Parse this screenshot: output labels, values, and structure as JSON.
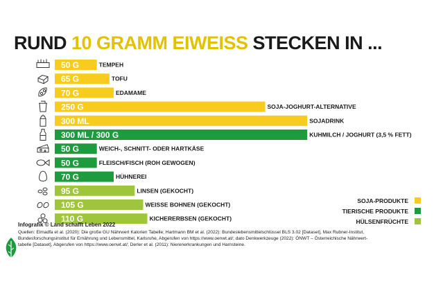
{
  "title": {
    "part1": "RUND ",
    "highlight": "10 GRAMM EIWEISS",
    "part2": " STECKEN IN ..."
  },
  "colors": {
    "soja": "#f7cc1e",
    "tierisch": "#1e9a3f",
    "huelsen": "#9fc53a"
  },
  "chart_data": {
    "type": "bar",
    "orientation": "horizontal",
    "categories": [
      "TEMPEH",
      "TOFU",
      "EDAMAME",
      "SOJA-JOGHURT-ALTERNATIVE",
      "SOJADRINK",
      "KUHMILCH / JOGHURT (3,5 % FETT)",
      "WEICH-, SCHNITT- ODER HARTKÄSE",
      "FLEISCH/FISCH (ROH GEWOGEN)",
      "HÜHNEREI",
      "LINSEN (GEKOCHT)",
      "WEISSE BOHNEN (GEKOCHT)",
      "KICHERERBSEN (GEKOCHT)"
    ],
    "items": [
      {
        "label": "TEMPEH",
        "value_text": "50 G",
        "value": 50,
        "group": "soja",
        "icon": "tempeh-icon"
      },
      {
        "label": "TOFU",
        "value_text": "65 G",
        "value": 65,
        "group": "soja",
        "icon": "tofu-icon"
      },
      {
        "label": "EDAMAME",
        "value_text": "70 G",
        "value": 70,
        "group": "soja",
        "icon": "edamame-icon"
      },
      {
        "label": "SOJA-JOGHURT-ALTERNATIVE",
        "value_text": "250 G",
        "value": 250,
        "group": "soja",
        "icon": "yogurt-cup-icon"
      },
      {
        "label": "SOJADRINK",
        "value_text": "300 ML",
        "value": 300,
        "group": "soja",
        "icon": "drink-carton-icon"
      },
      {
        "label": "KUHMILCH / JOGHURT (3,5 % FETT)",
        "value_text": "300 ML / 300 G",
        "value": 300,
        "group": "tierisch",
        "icon": "milk-bottle-icon"
      },
      {
        "label": "WEICH-, SCHNITT- ODER HARTKÄSE",
        "value_text": "50 G",
        "value": 50,
        "group": "tierisch",
        "icon": "cheese-icon"
      },
      {
        "label": "FLEISCH/FISCH (ROH GEWOGEN)",
        "value_text": "50 G",
        "value": 50,
        "group": "tierisch",
        "icon": "meat-fish-icon"
      },
      {
        "label": "HÜHNEREI",
        "value_text": "70 G",
        "value": 70,
        "group": "tierisch",
        "icon": "egg-icon"
      },
      {
        "label": "LINSEN (GEKOCHT)",
        "value_text": "95 G",
        "value": 95,
        "group": "huelsen",
        "icon": "lentils-icon"
      },
      {
        "label": "WEISSE BOHNEN (GEKOCHT)",
        "value_text": "105 G",
        "value": 105,
        "group": "huelsen",
        "icon": "beans-icon"
      },
      {
        "label": "KICHERERBSEN (GEKOCHT)",
        "value_text": "110 G",
        "value": 110,
        "group": "huelsen",
        "icon": "chickpeas-icon"
      }
    ],
    "legend": [
      {
        "name": "SOJA-PRODUKTE",
        "group": "soja"
      },
      {
        "name": "TIERISCHE PRODUKTE",
        "group": "tierisch"
      },
      {
        "name": "HÜLSENFRÜCHTE",
        "group": "huelsen"
      }
    ],
    "legend_position": "bottom-right",
    "grid": false
  },
  "footer": {
    "credit": "Infografik © Land schafft Leben 2022",
    "sources": [
      "Quellen: Elmadfa et al. (2020): Die große GU Nährwert Kalorien Tabelle; Hartmann BM et al. (2022): Bundeslebensmittelschlüssel BLS 3.02 [Dataset], Max Rubner-Institut,",
      "Bundesforschungsinstitut für Ernährung und Lebensmittel, Karlsruhe, Abgerufen von https://www.oenwt.at/; dato Denkwerkzeuge (2022): ÖNWT – Österreichische Nährwert-",
      "tabelle [Dataset], Abgerufen von https://www.oenwt.at/; Derler et al. (2011): Nierenerkrankungen und Harnsteine."
    ],
    "logo_icon": "leaf-logo-icon"
  }
}
